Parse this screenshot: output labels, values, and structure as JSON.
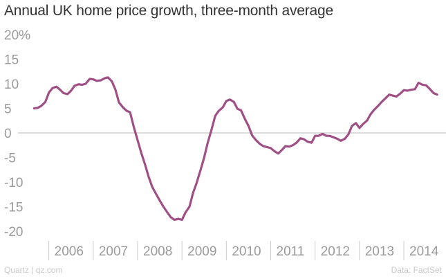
{
  "title": "Annual UK home price growth, three-month average",
  "footer": {
    "source_left": "Quartz | qz.com",
    "source_right": "Data: FactSet"
  },
  "colors": {
    "line": "#a04f86",
    "zero_line": "#b8b8b8",
    "tick_text": "#9a9a9a",
    "tick_marks": "#cccccc"
  },
  "chart_data": {
    "type": "line",
    "title": "Annual UK home price growth, three-month average",
    "xlabel": "",
    "ylabel": "",
    "xlim": [
      2005.6,
      2014.95
    ],
    "ylim": [
      -22,
      21
    ],
    "grid": false,
    "zero_line": true,
    "y_ticks": [
      {
        "value": 20,
        "label": "20%"
      },
      {
        "value": 15,
        "label": "15"
      },
      {
        "value": 10,
        "label": "10"
      },
      {
        "value": 5,
        "label": "5"
      },
      {
        "value": 0,
        "label": "0"
      },
      {
        "value": -5,
        "label": "-5"
      },
      {
        "value": -10,
        "label": "-10"
      },
      {
        "value": -15,
        "label": "-15"
      },
      {
        "value": -20,
        "label": "-20"
      }
    ],
    "x_ticks": [
      {
        "value": 2006,
        "label": "2006"
      },
      {
        "value": 2007,
        "label": "2007"
      },
      {
        "value": 2008,
        "label": "2008"
      },
      {
        "value": 2009,
        "label": "2009"
      },
      {
        "value": 2010,
        "label": "2010"
      },
      {
        "value": 2011,
        "label": "2011"
      },
      {
        "value": 2012,
        "label": "2012"
      },
      {
        "value": 2013,
        "label": "2013"
      },
      {
        "value": 2014,
        "label": "2014"
      }
    ],
    "series": [
      {
        "points": [
          [
            2005.67,
            5.0
          ],
          [
            2005.75,
            5.1
          ],
          [
            2005.83,
            5.5
          ],
          [
            2005.92,
            6.3
          ],
          [
            2006.0,
            8.2
          ],
          [
            2006.08,
            9.1
          ],
          [
            2006.17,
            9.4
          ],
          [
            2006.25,
            8.8
          ],
          [
            2006.33,
            8.1
          ],
          [
            2006.42,
            7.9
          ],
          [
            2006.5,
            8.6
          ],
          [
            2006.58,
            9.6
          ],
          [
            2006.67,
            9.9
          ],
          [
            2006.75,
            9.8
          ],
          [
            2006.83,
            10.0
          ],
          [
            2006.92,
            11.0
          ],
          [
            2007.0,
            10.9
          ],
          [
            2007.08,
            10.6
          ],
          [
            2007.17,
            10.7
          ],
          [
            2007.25,
            11.1
          ],
          [
            2007.33,
            11.3
          ],
          [
            2007.42,
            10.5
          ],
          [
            2007.5,
            8.8
          ],
          [
            2007.58,
            6.2
          ],
          [
            2007.67,
            5.2
          ],
          [
            2007.75,
            4.5
          ],
          [
            2007.83,
            4.2
          ],
          [
            2007.92,
            1.0
          ],
          [
            2008.0,
            -1.5
          ],
          [
            2008.08,
            -4.0
          ],
          [
            2008.17,
            -6.5
          ],
          [
            2008.25,
            -9.0
          ],
          [
            2008.33,
            -11.0
          ],
          [
            2008.42,
            -12.5
          ],
          [
            2008.5,
            -13.8
          ],
          [
            2008.58,
            -15.0
          ],
          [
            2008.67,
            -16.2
          ],
          [
            2008.75,
            -17.2
          ],
          [
            2008.83,
            -17.7
          ],
          [
            2008.92,
            -17.5
          ],
          [
            2009.0,
            -17.7
          ],
          [
            2009.08,
            -16.2
          ],
          [
            2009.17,
            -15.0
          ],
          [
            2009.25,
            -12.2
          ],
          [
            2009.33,
            -10.2
          ],
          [
            2009.42,
            -7.5
          ],
          [
            2009.5,
            -5.0
          ],
          [
            2009.58,
            -2.0
          ],
          [
            2009.67,
            0.8
          ],
          [
            2009.75,
            3.5
          ],
          [
            2009.83,
            4.5
          ],
          [
            2009.92,
            5.2
          ],
          [
            2010.0,
            6.5
          ],
          [
            2010.08,
            6.8
          ],
          [
            2010.17,
            6.3
          ],
          [
            2010.25,
            4.9
          ],
          [
            2010.33,
            4.6
          ],
          [
            2010.42,
            2.8
          ],
          [
            2010.5,
            1.4
          ],
          [
            2010.58,
            -0.5
          ],
          [
            2010.67,
            -1.5
          ],
          [
            2010.75,
            -2.2
          ],
          [
            2010.83,
            -2.7
          ],
          [
            2010.92,
            -2.9
          ],
          [
            2011.0,
            -3.1
          ],
          [
            2011.08,
            -3.7
          ],
          [
            2011.17,
            -4.2
          ],
          [
            2011.25,
            -3.5
          ],
          [
            2011.33,
            -2.7
          ],
          [
            2011.42,
            -2.8
          ],
          [
            2011.5,
            -2.5
          ],
          [
            2011.58,
            -2.0
          ],
          [
            2011.67,
            -1.1
          ],
          [
            2011.75,
            -1.3
          ],
          [
            2011.83,
            -1.8
          ],
          [
            2011.92,
            -2.0
          ],
          [
            2012.0,
            -0.6
          ],
          [
            2012.08,
            -0.6
          ],
          [
            2012.17,
            -0.2
          ],
          [
            2012.25,
            -0.6
          ],
          [
            2012.33,
            -0.6
          ],
          [
            2012.42,
            -0.9
          ],
          [
            2012.5,
            -1.2
          ],
          [
            2012.58,
            -1.6
          ],
          [
            2012.67,
            -1.2
          ],
          [
            2012.75,
            -0.3
          ],
          [
            2012.83,
            1.4
          ],
          [
            2012.92,
            2.0
          ],
          [
            2013.0,
            1.0
          ],
          [
            2013.08,
            1.8
          ],
          [
            2013.17,
            2.5
          ],
          [
            2013.25,
            3.8
          ],
          [
            2013.33,
            4.7
          ],
          [
            2013.42,
            5.5
          ],
          [
            2013.5,
            6.3
          ],
          [
            2013.58,
            7.0
          ],
          [
            2013.67,
            7.8
          ],
          [
            2013.75,
            7.6
          ],
          [
            2013.83,
            7.4
          ],
          [
            2013.92,
            8.0
          ],
          [
            2014.0,
            8.7
          ],
          [
            2014.08,
            8.6
          ],
          [
            2014.17,
            8.8
          ],
          [
            2014.25,
            8.9
          ],
          [
            2014.33,
            10.2
          ],
          [
            2014.42,
            9.8
          ],
          [
            2014.5,
            9.7
          ],
          [
            2014.58,
            9.0
          ],
          [
            2014.67,
            8.1
          ],
          [
            2014.75,
            7.8
          ]
        ]
      }
    ]
  }
}
